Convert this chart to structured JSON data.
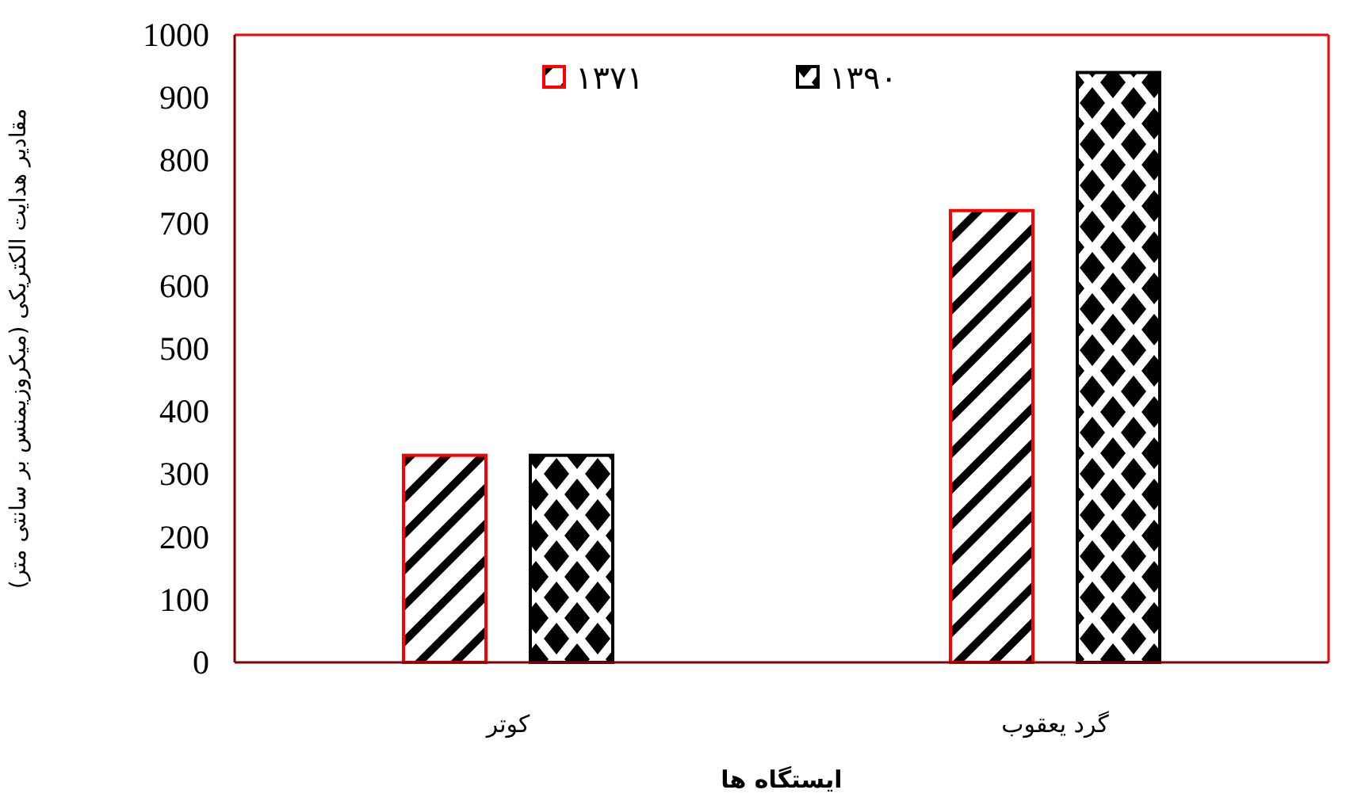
{
  "chart_data": {
    "type": "bar",
    "xlabel": "ایستگاه ها",
    "ylabel": "مقادیر هدایت الکتریکی (میکروزیمنس بر سانتی متر)",
    "categories": [
      "کوتر",
      "گرد یعقوب"
    ],
    "series": [
      {
        "name": "۱۳۷۱",
        "color": "#ff0000",
        "values": [
          330,
          720
        ]
      },
      {
        "name": "۱۳۹۰",
        "color": "#000000",
        "values": [
          330,
          940
        ]
      }
    ],
    "ylim": [
      0,
      1000
    ],
    "yticks": [
      0,
      100,
      200,
      300,
      400,
      500,
      600,
      700,
      800,
      900,
      1000
    ],
    "legend": "top"
  }
}
